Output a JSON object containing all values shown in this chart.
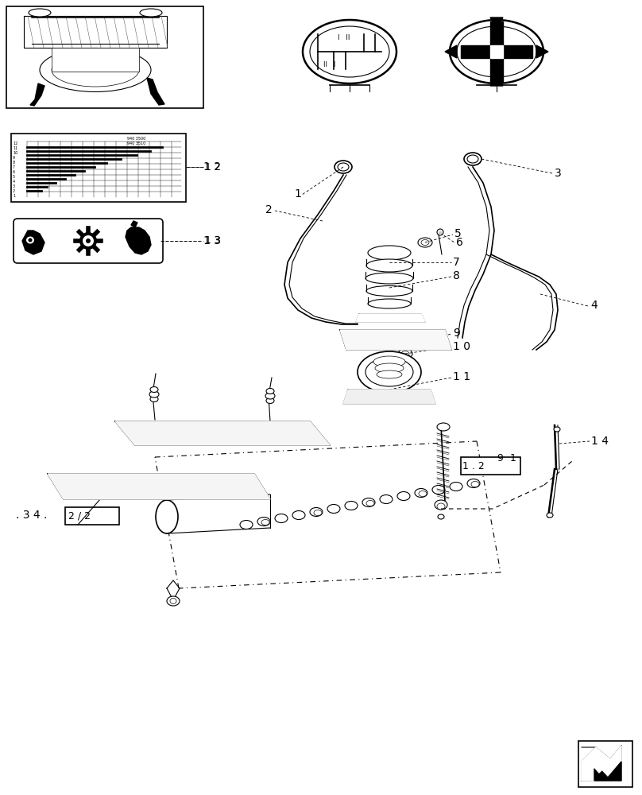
{
  "bg_color": "#ffffff",
  "line_color": "#000000",
  "fig_width": 8.08,
  "fig_height": 10.0,
  "dpi": 100
}
